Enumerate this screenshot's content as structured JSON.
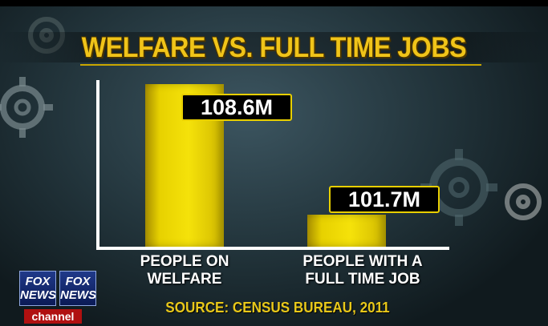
{
  "chart_data": {
    "type": "bar",
    "title": "WELFARE VS. FULL TIME JOBS",
    "categories": [
      "PEOPLE ON\nWELFARE",
      "PEOPLE WITH A\nFULL TIME JOB"
    ],
    "values": [
      108.6,
      101.7
    ],
    "value_labels": [
      "108.6M",
      "101.7M"
    ],
    "ylim": [
      100,
      109
    ],
    "xlabel": "",
    "ylabel": "",
    "grid": false,
    "source": "SOURCE: CENSUS BUREAU, 2011"
  },
  "logo": {
    "left_text": "FOX NEWS",
    "right_text": "FOX NEWS",
    "channel": "channel"
  },
  "colors": {
    "bar": "#f5e20a",
    "title": "#f0c419",
    "label_border": "#e8cf00"
  },
  "decor": {
    "gear_icons": [
      "gear-icon",
      "gear-icon",
      "gear-icon",
      "gear-icon"
    ]
  }
}
